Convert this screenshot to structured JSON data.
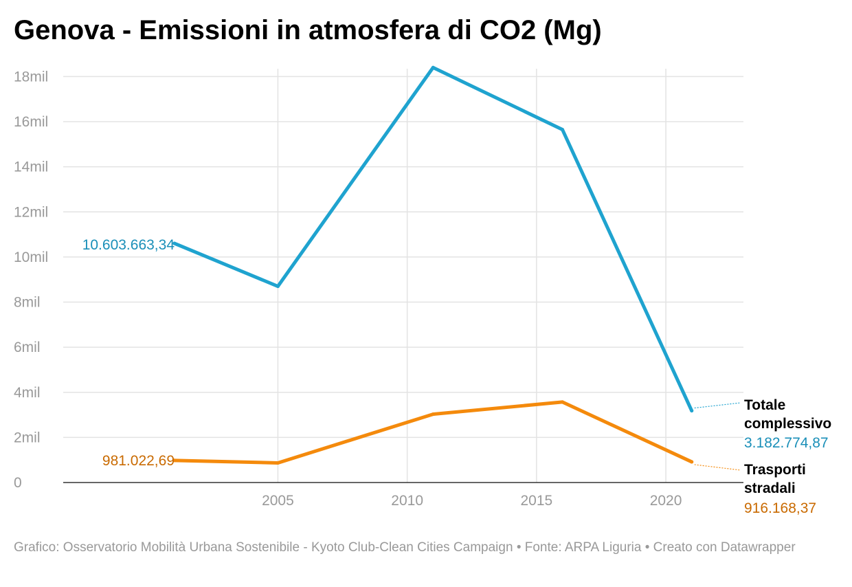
{
  "title": "Genova - Emissioni in atmosfera di CO2 (Mg)",
  "footer": "Grafico: Osservatorio Mobilità Urbana Sostenibile - Kyoto Club-Clean Cities Campaign • Fonte: ARPA Liguria • Creato con Datawrapper",
  "chart_data": {
    "type": "line",
    "title": "Genova - Emissioni in atmosfera di CO2 (Mg)",
    "xlabel": "",
    "ylabel": "",
    "x": [
      2001,
      2005,
      2011,
      2016,
      2021
    ],
    "xlim": [
      1996.7,
      2023
    ],
    "ylim": [
      0,
      18500000
    ],
    "x_ticks": [
      2005,
      2010,
      2015,
      2020
    ],
    "x_tick_labels": [
      "2005",
      "2010",
      "2015",
      "2020"
    ],
    "y_ticks": [
      0,
      2000000,
      4000000,
      6000000,
      8000000,
      10000000,
      12000000,
      14000000,
      16000000,
      18000000
    ],
    "y_tick_labels": [
      "0",
      "2mil",
      "4mil",
      "6mil",
      "8mil",
      "10mil",
      "12mil",
      "14mil",
      "16mil",
      "18mil"
    ],
    "grid": true,
    "series": [
      {
        "name": "Totale complessivo",
        "name_lines": [
          "Totale",
          "complessivo"
        ],
        "color": "#1fa3cf",
        "label_color": "#1a8fb8",
        "values": [
          10603663.34,
          8700000,
          18400000,
          15650000,
          3182774.87
        ],
        "start_label": "10.603.663,34",
        "end_label": "3.182.774,87"
      },
      {
        "name": "Trasporti stradali",
        "name_lines": [
          "Trasporti",
          "stradali"
        ],
        "color": "#f48a0c",
        "label_color": "#c96a00",
        "values": [
          981022.69,
          870000,
          3030000,
          3570000,
          916168.37
        ],
        "start_label": "981.022,69",
        "end_label": "916.168,37"
      }
    ]
  }
}
